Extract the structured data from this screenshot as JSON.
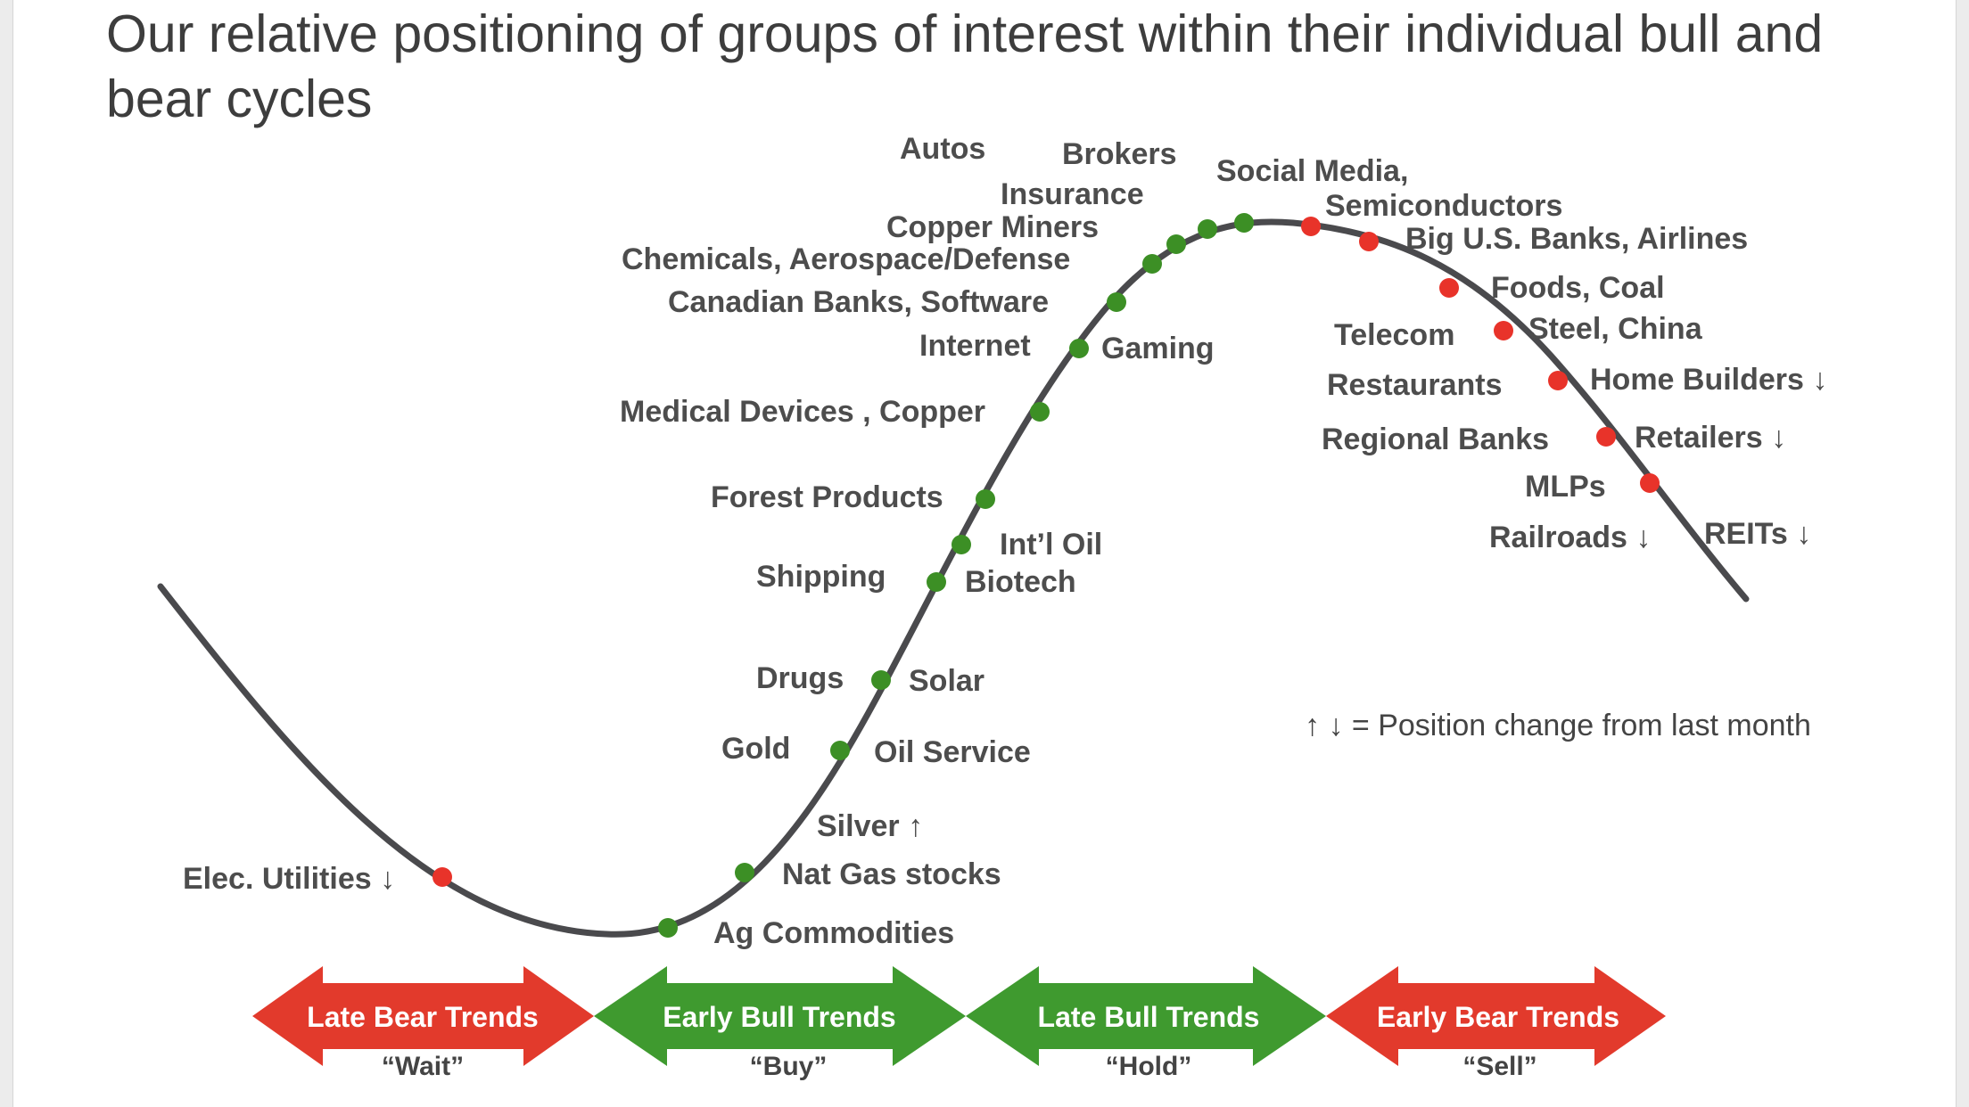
{
  "title": "Our relative positioning of groups of interest within their individual bull and bear cycles",
  "colors": {
    "up_dot": "#3c8f25",
    "down_dot": "#e8332a",
    "curve": "#4a4a4d",
    "bull_arrow": "#3f9a2f",
    "bear_arrow": "#e23a2c"
  },
  "groups": [
    {
      "label": "Elec. Utilities",
      "change": "down",
      "dot": "red"
    },
    {
      "label": "Ag Commodities",
      "change": "",
      "dot": "green"
    },
    {
      "label": "Nat Gas stocks",
      "change": "",
      "dot": "green"
    },
    {
      "label": "Silver",
      "change": "up",
      "dot": "none"
    },
    {
      "label": "Gold",
      "change": "",
      "dot": "green"
    },
    {
      "label": "Oil Service",
      "change": "",
      "dot": "none"
    },
    {
      "label": "Drugs",
      "change": "",
      "dot": "green"
    },
    {
      "label": "Solar",
      "change": "",
      "dot": "none"
    },
    {
      "label": "Shipping",
      "change": "",
      "dot": "green"
    },
    {
      "label": "Biotech",
      "change": "",
      "dot": "none"
    },
    {
      "label": "Int’l Oil",
      "change": "",
      "dot": "green"
    },
    {
      "label": "Forest Products",
      "change": "",
      "dot": "green"
    },
    {
      "label": "Medical Devices ,  Copper",
      "change": "",
      "dot": "green"
    },
    {
      "label": "Internet",
      "change": "",
      "dot": "green"
    },
    {
      "label": "Gaming",
      "change": "",
      "dot": "none"
    },
    {
      "label": "Canadian Banks,  Software",
      "change": "",
      "dot": "green"
    },
    {
      "label": "Chemicals,  Aerospace/Defense",
      "change": "",
      "dot": "green"
    },
    {
      "label": "Copper Miners",
      "change": "",
      "dot": "green"
    },
    {
      "label": "Insurance",
      "change": "",
      "dot": "green"
    },
    {
      "label": "Autos",
      "change": "",
      "dot": "none"
    },
    {
      "label": "Brokers",
      "change": "",
      "dot": "green"
    },
    {
      "label": "Social Media,",
      "change": "",
      "dot": "red"
    },
    {
      "label": "Semiconductors",
      "change": "",
      "dot": "none"
    },
    {
      "label": "Big U.S. Banks, Airlines",
      "change": "",
      "dot": "red"
    },
    {
      "label": "Foods, Coal",
      "change": "",
      "dot": "red"
    },
    {
      "label": "Telecom",
      "change": "",
      "dot": "none"
    },
    {
      "label": "Steel,  China",
      "change": "",
      "dot": "red"
    },
    {
      "label": "Restaurants",
      "change": "",
      "dot": "none"
    },
    {
      "label": "Home Builders",
      "change": "down",
      "dot": "red"
    },
    {
      "label": "Regional Banks",
      "change": "",
      "dot": "none"
    },
    {
      "label": "Retailers",
      "change": "down",
      "dot": "red"
    },
    {
      "label": "MLPs",
      "change": "",
      "dot": "red"
    },
    {
      "label": "Railroads",
      "change": "down",
      "dot": "none"
    },
    {
      "label": "REITs",
      "change": "down",
      "dot": "none"
    }
  ],
  "legend": {
    "symbols": "↑ ↓",
    "text": "= Position change from last month"
  },
  "arrows": {
    "up": "↑",
    "down": "↓"
  },
  "phases": [
    {
      "label": "Late Bear Trends",
      "action": "“Wait”",
      "color": "red"
    },
    {
      "label": "Early Bull Trends",
      "action": "“Buy”",
      "color": "green"
    },
    {
      "label": "Late Bull Trends",
      "action": "“Hold”",
      "color": "green"
    },
    {
      "label": "Early Bear Trends",
      "action": "“Sell”",
      "color": "red"
    }
  ]
}
